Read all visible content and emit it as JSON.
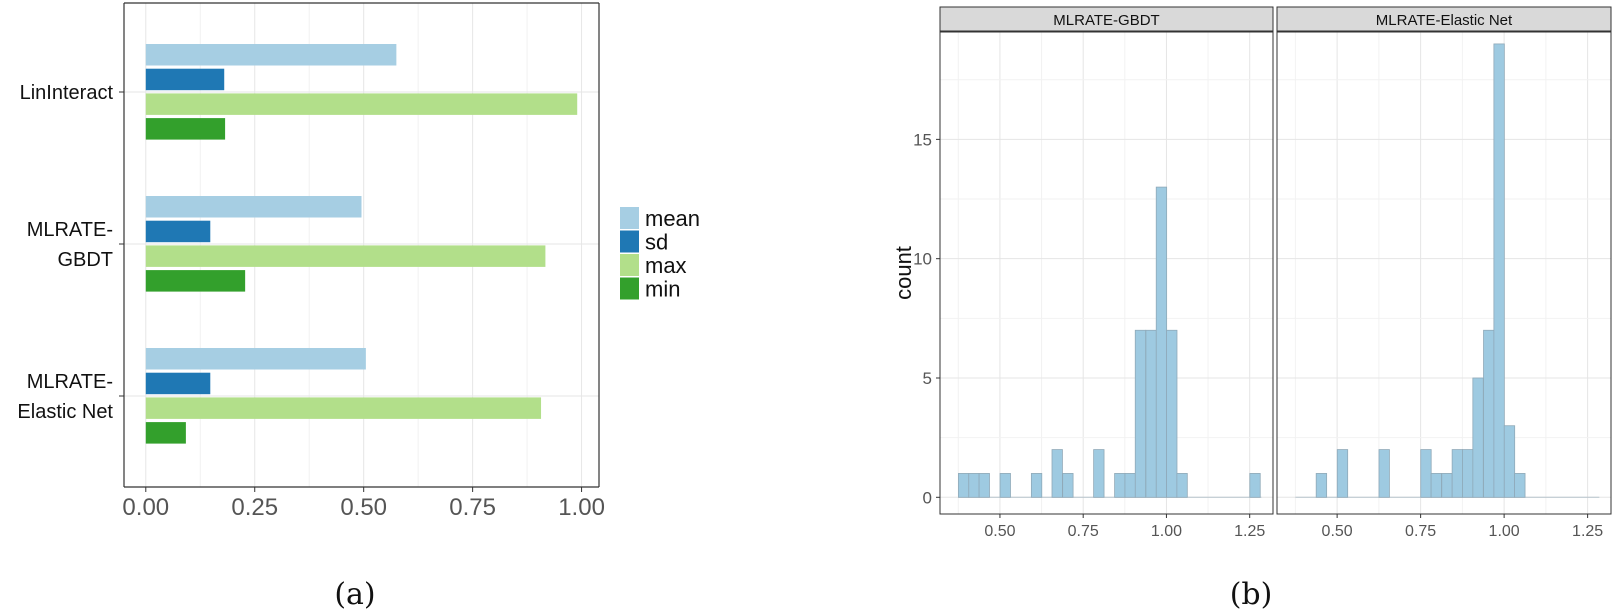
{
  "chart_data": [
    {
      "type": "bar",
      "orientation": "horizontal",
      "categories": [
        {
          "lines": [
            "LinInteract"
          ]
        },
        {
          "lines": [
            "MLRATE-",
            "GBDT"
          ]
        },
        {
          "lines": [
            "MLRATE-",
            "Elastic Net"
          ]
        }
      ],
      "series": [
        {
          "name": "mean",
          "color": "#a6cee3",
          "values": [
            0.575,
            0.495,
            0.505
          ]
        },
        {
          "name": "sd",
          "color": "#1f78b4",
          "values": [
            0.18,
            0.148,
            0.148
          ]
        },
        {
          "name": "max",
          "color": "#b2df8a",
          "values": [
            0.99,
            0.917,
            0.907
          ]
        },
        {
          "name": "min",
          "color": "#33a02c",
          "values": [
            0.182,
            0.228,
            0.092
          ]
        }
      ],
      "xlim": [
        -0.05,
        1.04
      ],
      "x_ticks": [
        "0.00",
        "0.25",
        "0.50",
        "0.75",
        "1.00"
      ],
      "legend_position": "right",
      "grid": true,
      "panel_label": "(a)"
    },
    {
      "type": "histogram",
      "ylabel": "count",
      "ylim": [
        -0.7,
        19.5
      ],
      "y_ticks": [
        "0",
        "5",
        "10",
        "15"
      ],
      "xlim": [
        0.32,
        1.32
      ],
      "x_ticks": [
        "0.50",
        "0.75",
        "1.00",
        "1.25"
      ],
      "bin_width": 0.0313,
      "bar_color": "#9ecae1",
      "bar_edge": "#8fa9b8",
      "grid": true,
      "panel_label": "(b)",
      "facets": [
        {
          "title": "MLRATE-GBDT",
          "range": [
            0.375,
            1.285
          ],
          "bins": [
            {
              "x": 0.391,
              "count": 1
            },
            {
              "x": 0.422,
              "count": 1
            },
            {
              "x": 0.453,
              "count": 1
            },
            {
              "x": 0.516,
              "count": 1
            },
            {
              "x": 0.61,
              "count": 1
            },
            {
              "x": 0.672,
              "count": 2
            },
            {
              "x": 0.704,
              "count": 1
            },
            {
              "x": 0.797,
              "count": 2
            },
            {
              "x": 0.86,
              "count": 1
            },
            {
              "x": 0.891,
              "count": 1
            },
            {
              "x": 0.922,
              "count": 7
            },
            {
              "x": 0.954,
              "count": 7
            },
            {
              "x": 0.985,
              "count": 13
            },
            {
              "x": 1.016,
              "count": 7
            },
            {
              "x": 1.047,
              "count": 1
            },
            {
              "x": 1.266,
              "count": 1
            }
          ]
        },
        {
          "title": "MLRATE-Elastic Net",
          "range": [
            0.375,
            1.285
          ],
          "bins": [
            {
              "x": 0.453,
              "count": 1
            },
            {
              "x": 0.516,
              "count": 2
            },
            {
              "x": 0.641,
              "count": 2
            },
            {
              "x": 0.766,
              "count": 2
            },
            {
              "x": 0.797,
              "count": 1
            },
            {
              "x": 0.829,
              "count": 1
            },
            {
              "x": 0.86,
              "count": 2
            },
            {
              "x": 0.891,
              "count": 2
            },
            {
              "x": 0.922,
              "count": 5
            },
            {
              "x": 0.954,
              "count": 7
            },
            {
              "x": 0.985,
              "count": 19
            },
            {
              "x": 1.016,
              "count": 3
            },
            {
              "x": 1.047,
              "count": 1
            }
          ]
        }
      ]
    }
  ]
}
